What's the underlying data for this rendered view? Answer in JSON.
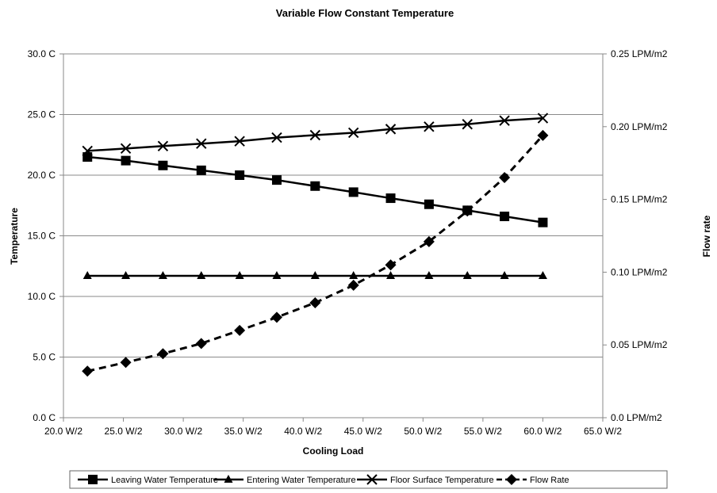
{
  "chart_data": {
    "type": "line",
    "title": "Variable Flow Constant Temperature",
    "xlabel": "Cooling Load",
    "ylabel": "Temperature",
    "y2label": "Flow rate",
    "xlim": [
      20,
      65
    ],
    "ylim": [
      0,
      30
    ],
    "y2lim": [
      0,
      0.25
    ],
    "grid": true,
    "legend_position": "bottom",
    "x_ticks": [
      "20.0 W/2",
      "25.0 W/2",
      "30.0 W/2",
      "35.0 W/2",
      "40.0 W/2",
      "45.0 W/2",
      "50.0 W/2",
      "55.0 W/2",
      "60.0 W/2",
      "65.0 W/2"
    ],
    "y_ticks": [
      "0.0 C",
      "5.0 C",
      "10.0 C",
      "15.0 C",
      "20.0 C",
      "25.0 C",
      "30.0 C"
    ],
    "y2_ticks": [
      "0.0 LPM/m2",
      "0.05 LPM/m2",
      "0.10 LPM/m2",
      "0.15 LPM/m2",
      "0.20 LPM/m2",
      "0.25 LPM/m2"
    ],
    "x": [
      22,
      25.2,
      28.3,
      31.5,
      34.7,
      37.8,
      41,
      44.2,
      47.3,
      50.5,
      53.7,
      56.8,
      60
    ],
    "series": [
      {
        "name": "Leaving Water Temperature",
        "axis": "left",
        "marker": "square",
        "dash": "solid",
        "values": [
          21.5,
          21.2,
          20.8,
          20.4,
          20.0,
          19.6,
          19.1,
          18.6,
          18.1,
          17.6,
          17.1,
          16.6,
          16.1
        ]
      },
      {
        "name": "Entering Water Temperature",
        "axis": "left",
        "marker": "triangle",
        "dash": "solid",
        "values": [
          11.7,
          11.7,
          11.7,
          11.7,
          11.7,
          11.7,
          11.7,
          11.7,
          11.7,
          11.7,
          11.7,
          11.7,
          11.7
        ]
      },
      {
        "name": "Floor Surface Temperature",
        "axis": "left",
        "marker": "cross",
        "dash": "solid",
        "values": [
          22.0,
          22.2,
          22.4,
          22.6,
          22.8,
          23.1,
          23.3,
          23.5,
          23.8,
          24.0,
          24.2,
          24.5,
          24.7
        ]
      },
      {
        "name": "Flow Rate",
        "axis": "right",
        "marker": "diamond",
        "dash": "dashed",
        "values": [
          0.032,
          0.038,
          0.044,
          0.051,
          0.06,
          0.069,
          0.079,
          0.091,
          0.105,
          0.121,
          0.142,
          0.165,
          0.194
        ]
      }
    ]
  }
}
